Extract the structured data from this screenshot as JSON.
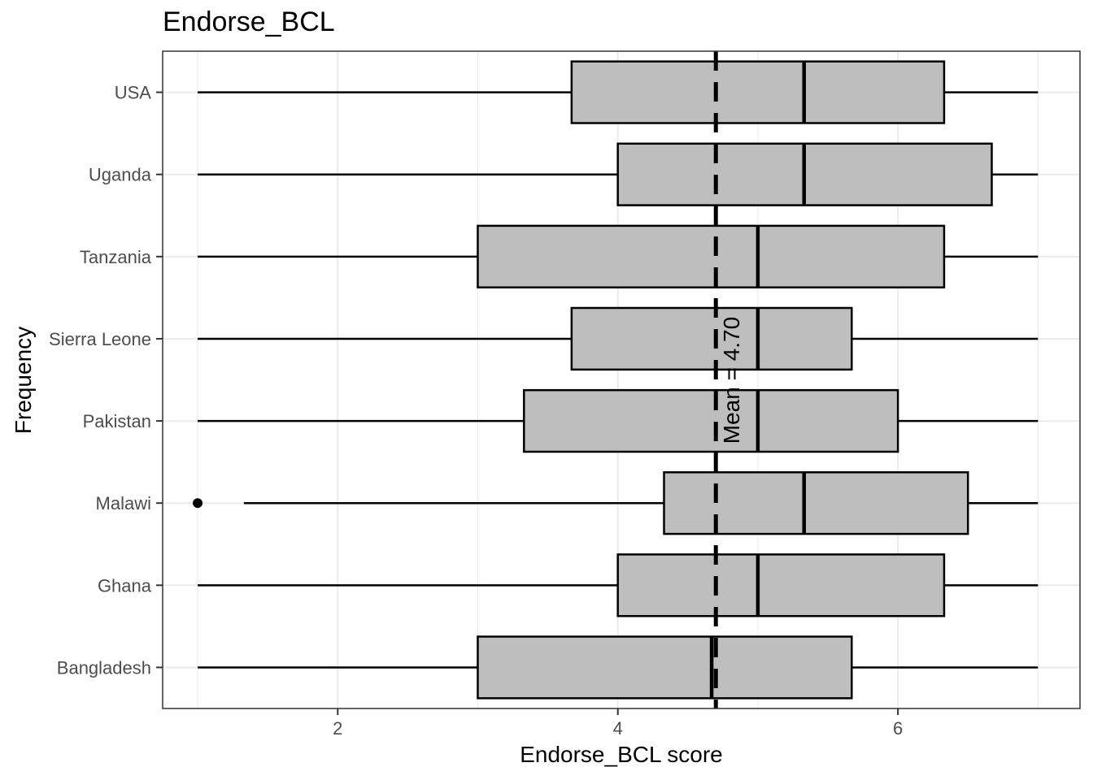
{
  "chart_data": {
    "type": "boxplot",
    "title": "Endorse_BCL",
    "xlabel": "Endorse_BCL score",
    "ylabel": "Frequency",
    "xlim": [
      0.75,
      7.3
    ],
    "x_ticks": [
      2,
      4,
      6
    ],
    "grid": true,
    "categories": [
      "Bangladesh",
      "Ghana",
      "Malawi",
      "Pakistan",
      "Sierra Leone",
      "Tanzania",
      "Uganda",
      "USA"
    ],
    "series": [
      {
        "category": "Bangladesh",
        "whisker_low": 1.0,
        "q1": 3.0,
        "median": 4.67,
        "q3": 5.67,
        "whisker_high": 7.0,
        "outliers": []
      },
      {
        "category": "Ghana",
        "whisker_low": 1.0,
        "q1": 4.0,
        "median": 5.0,
        "q3": 6.33,
        "whisker_high": 7.0,
        "outliers": []
      },
      {
        "category": "Malawi",
        "whisker_low": 1.33,
        "q1": 4.33,
        "median": 5.33,
        "q3": 6.5,
        "whisker_high": 7.0,
        "outliers": [
          1.0
        ]
      },
      {
        "category": "Pakistan",
        "whisker_low": 1.0,
        "q1": 3.33,
        "median": 5.0,
        "q3": 6.0,
        "whisker_high": 7.0,
        "outliers": []
      },
      {
        "category": "Sierra Leone",
        "whisker_low": 1.0,
        "q1": 3.67,
        "median": 5.0,
        "q3": 5.67,
        "whisker_high": 7.0,
        "outliers": []
      },
      {
        "category": "Tanzania",
        "whisker_low": 1.0,
        "q1": 3.0,
        "median": 5.0,
        "q3": 6.33,
        "whisker_high": 7.0,
        "outliers": []
      },
      {
        "category": "Uganda",
        "whisker_low": 1.0,
        "q1": 4.0,
        "median": 5.33,
        "q3": 6.67,
        "whisker_high": 7.0,
        "outliers": []
      },
      {
        "category": "USA",
        "whisker_low": 1.0,
        "q1": 3.67,
        "median": 5.33,
        "q3": 6.33,
        "whisker_high": 7.0,
        "outliers": []
      }
    ],
    "mean_line": {
      "value": 4.7,
      "label": "Mean = 4.70"
    },
    "colors": {
      "box_fill": "#bebebe",
      "stroke": "#000000",
      "grid": "#ebebeb",
      "panel_border": "#333333",
      "text": "#4d4d4d"
    }
  }
}
